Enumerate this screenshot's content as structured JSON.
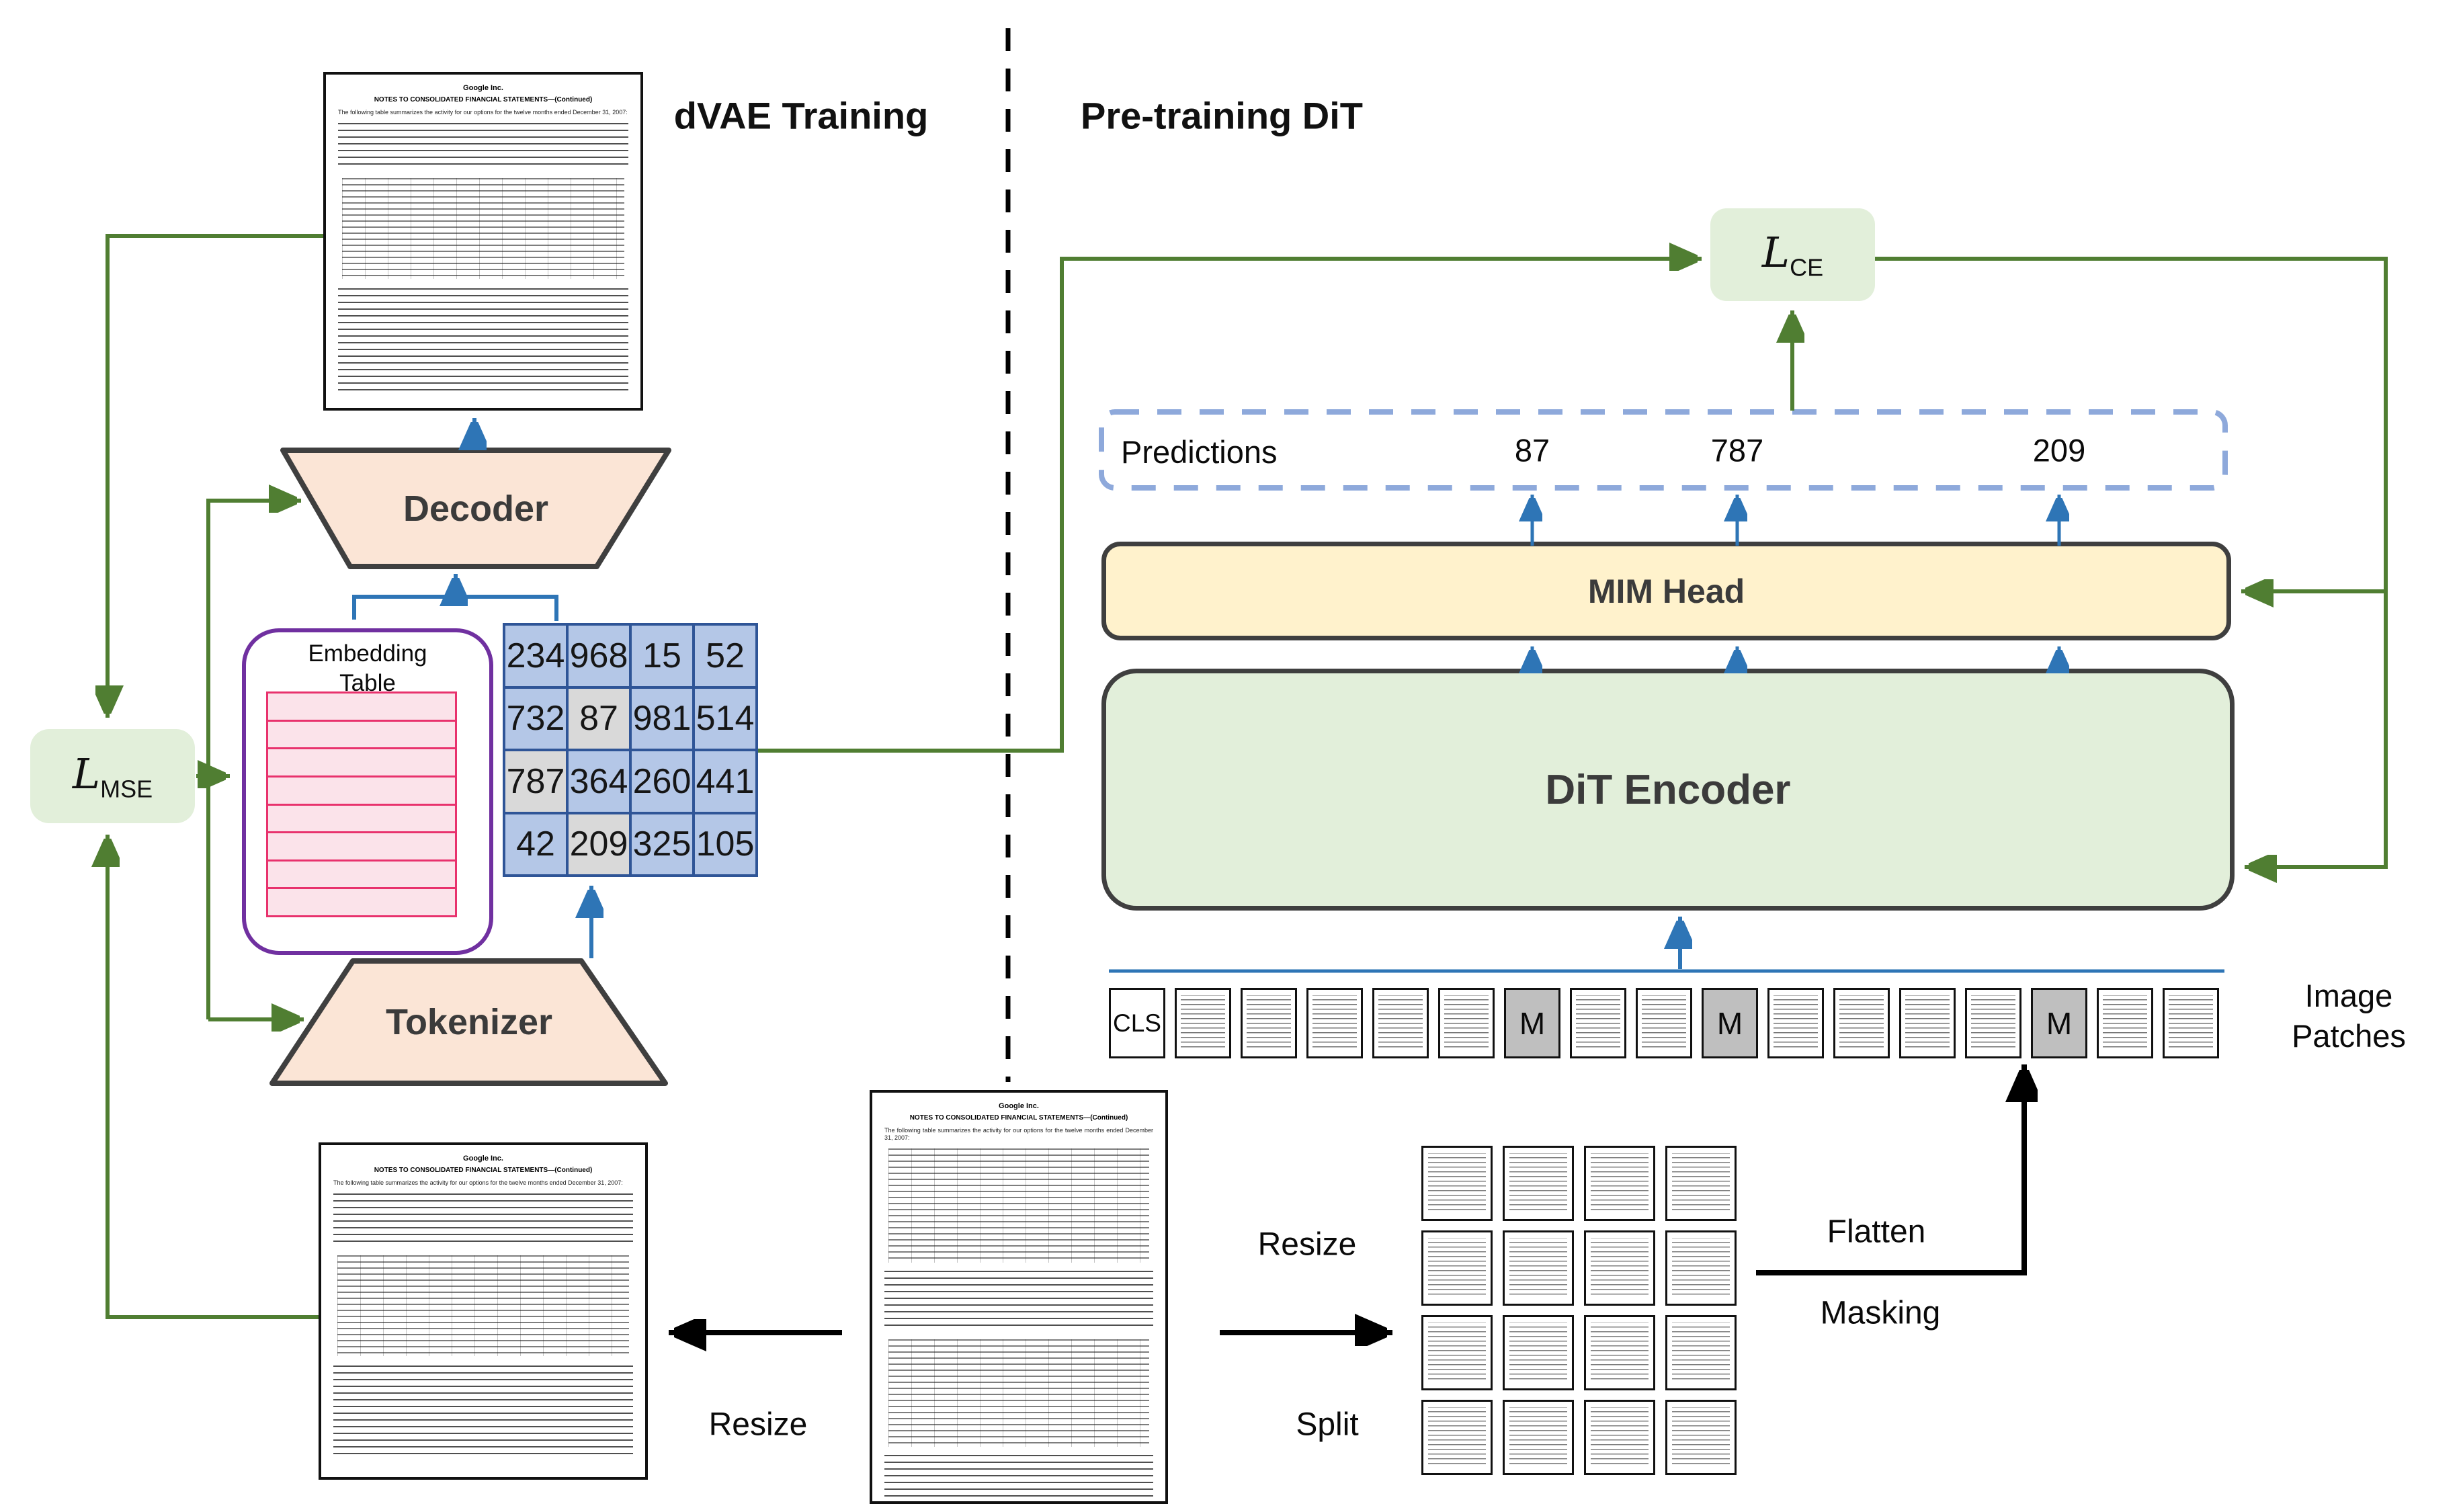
{
  "titles": {
    "left": "dVAE Training",
    "right": "Pre-training DiT"
  },
  "losses": {
    "mse": {
      "base": "L",
      "sub": "MSE"
    },
    "ce": {
      "base": "L",
      "sub": "CE"
    }
  },
  "dvae": {
    "decoder_label": "Decoder",
    "tokenizer_label": "Tokenizer",
    "embedding_table": {
      "title": "Embedding Table",
      "rows": 8
    },
    "token_grid": {
      "values": [
        [
          234,
          968,
          15,
          52
        ],
        [
          732,
          87,
          981,
          514
        ],
        [
          787,
          364,
          260,
          441
        ],
        [
          42,
          209,
          325,
          105
        ]
      ],
      "masked": [
        [
          1,
          1
        ],
        [
          2,
          0
        ],
        [
          3,
          1
        ]
      ]
    }
  },
  "pretraining": {
    "predictions": {
      "label": "Predictions",
      "values": [
        "87",
        "787",
        "209"
      ]
    },
    "mim_head_label": "MIM Head",
    "encoder_label": "DiT Encoder",
    "patch_row": {
      "cls_label": "CLS",
      "mask_label": "M",
      "cells": [
        "cls",
        "patch",
        "patch",
        "patch",
        "patch",
        "patch",
        "mask",
        "patch",
        "patch",
        "mask",
        "patch",
        "patch",
        "patch",
        "patch",
        "mask",
        "patch",
        "patch"
      ]
    },
    "image_patches_label_line1": "Image",
    "image_patches_label_line2": "Patches"
  },
  "flow_labels": {
    "resize_left": "Resize",
    "resize_right": "Resize",
    "split": "Split",
    "flatten": "Flatten",
    "masking": "Masking"
  },
  "document": {
    "company": "Google Inc.",
    "heading": "NOTES TO CONSOLIDATED FINANCIAL STATEMENTS—(Continued)",
    "body_snippet": "The following table summarizes the activity for our options for the twelve months ended December 31, 2007:"
  },
  "colors": {
    "green_arrow": "#507e32",
    "blue_arrow": "#2e75b6",
    "token_cell_blue": "#b4c7e7",
    "token_cell_masked": "#d9d9d9",
    "grid_border": "#2f5597",
    "mask_token_gray": "#bfbfbf",
    "predictions_dash": "#8ea9db",
    "mim_fill": "#fff2cc",
    "loss_fill": "#e2efda",
    "trapezoid_fill": "#fbe5d6",
    "embedding_border": "#7030a0",
    "embedding_row_pink": "#fbe3ea",
    "embedding_row_border": "#e8326d"
  }
}
